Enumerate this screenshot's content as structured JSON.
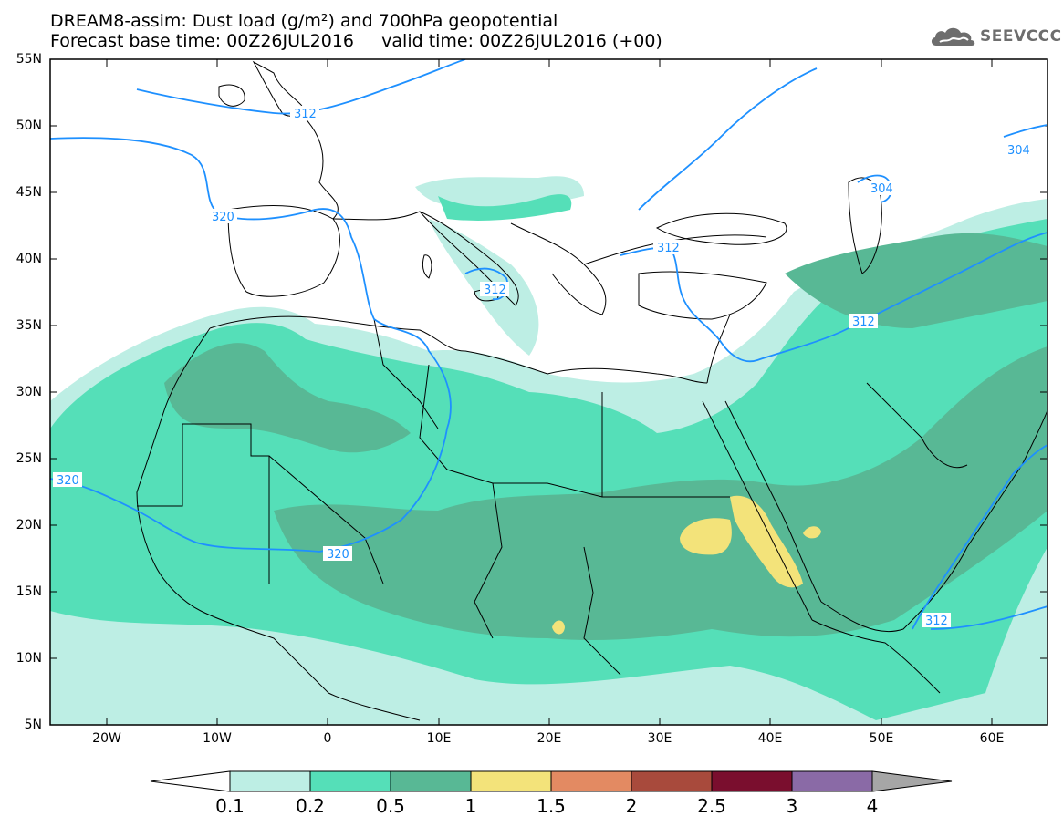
{
  "title": {
    "line1": "DREAM8-assim: Dust load (g/m²) and 700hPa geopotential",
    "line2": "Forecast base time: 00Z26JUL2016     valid time: 00Z26JUL2016 (+00)"
  },
  "logo": {
    "text": "SEEVCCC",
    "icon": "cloud-icon"
  },
  "map": {
    "lat_labels": [
      "55N",
      "50N",
      "45N",
      "40N",
      "35N",
      "30N",
      "25N",
      "20N",
      "15N",
      "10N",
      "5N"
    ],
    "lon_labels": [
      "20W",
      "10W",
      "0",
      "10E",
      "20E",
      "30E",
      "40E",
      "50E",
      "60E"
    ],
    "contour_labels": [
      "312",
      "320",
      "312",
      "312",
      "312",
      "304",
      "304",
      "320",
      "320",
      "312"
    ],
    "colors": {
      "land_background": "#ffffff",
      "contour_line": "#1e90ff",
      "coastline": "#000000"
    }
  },
  "colorbar": {
    "labels": [
      "0.1",
      "0.2",
      "0.5",
      "1",
      "1.5",
      "2",
      "2.5",
      "3",
      "4"
    ],
    "colors": [
      "#ffffff",
      "#bdeee4",
      "#55dfb8",
      "#58b895",
      "#f3e37a",
      "#e38a62",
      "#a84a3c",
      "#7a0e2e",
      "#8a6aa6",
      "#a6a6a6"
    ]
  }
}
